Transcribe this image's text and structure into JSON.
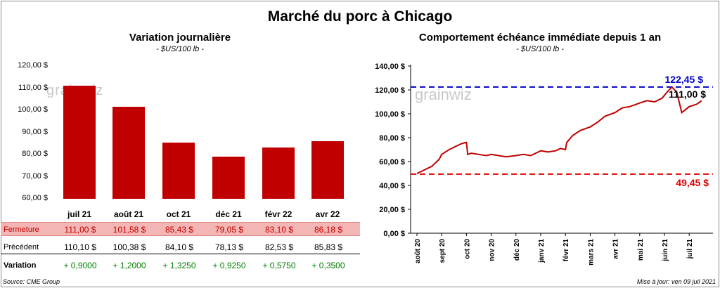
{
  "title": "Marché du porc à Chicago",
  "left_panel": {
    "title": "Variation journalière",
    "unit": "- $US/100 lb -",
    "watermark": "grainwiz",
    "table": {
      "rows": [
        {
          "label": "Fermeture",
          "cells": [
            "111,00  $",
            "101,58  $",
            "85,43  $",
            "79,05  $",
            "83,10  $",
            "86,18  $"
          ]
        },
        {
          "label": "Précédent",
          "cells": [
            "110,10  $",
            "100,38  $",
            "84,10  $",
            "78,13  $",
            "82,53  $",
            "85,83  $"
          ]
        },
        {
          "label": "Variation",
          "cells": [
            "+ 0,9000",
            "+ 1,2000",
            "+ 1,3250",
            "+ 0,9250",
            "+ 0,5750",
            "+ 0,3500"
          ]
        }
      ]
    }
  },
  "right_panel": {
    "title": "Comportement  échéance immédiate depuis 1 an",
    "unit": "- $US/100 lb -",
    "watermark": "grainwiz",
    "high_label": "122,45 $",
    "low_label": "49,45 $",
    "last_label": "111,00 $"
  },
  "colors": {
    "bar": "#c00000",
    "high_line": "#0000cc",
    "low_line": "#e00000",
    "positive": "#008000",
    "fermeture_bg": "#f4b6b4",
    "line": "#c00000"
  },
  "chart_data": [
    {
      "type": "bar",
      "title": "Variation journalière",
      "ylabel": "$US/100 lb",
      "categories": [
        "juil 21",
        "août 21",
        "oct 21",
        "déc 21",
        "févr 22",
        "avr 22"
      ],
      "values": [
        111.0,
        101.58,
        85.43,
        79.05,
        83.1,
        86.18
      ],
      "ylim": [
        60,
        120
      ],
      "yticks": [
        "60,00 $",
        "70,00 $",
        "80,00 $",
        "90,00 $",
        "100,00 $",
        "110,00 $",
        "120,00 $"
      ]
    },
    {
      "type": "line",
      "title": "Comportement  échéance immédiate depuis 1 an",
      "ylabel": "$US/100 lb",
      "ylim": [
        0,
        140
      ],
      "yticks": [
        "0,00 $",
        "20,00 $",
        "40,00 $",
        "60,00 $",
        "80,00 $",
        "100,00 $",
        "120,00 $",
        "140,00 $"
      ],
      "x_labels": [
        "août 20",
        "sept 20",
        "oct 20",
        "nov 20",
        "déc 20",
        "janv 21",
        "févr 21",
        "mars 21",
        "avr 21",
        "mai 21",
        "juin 21",
        "juil 21"
      ],
      "x": [
        0,
        0.3,
        0.6,
        0.9,
        1.0,
        1.3,
        1.6,
        1.8,
        2.0,
        2.05,
        2.2,
        2.5,
        2.8,
        3.0,
        3.3,
        3.6,
        4.0,
        4.3,
        4.6,
        5.0,
        5.3,
        5.6,
        5.8,
        6.0,
        6.05,
        6.3,
        6.6,
        7.0,
        7.3,
        7.6,
        8.0,
        8.3,
        8.6,
        9.0,
        9.3,
        9.6,
        9.9,
        10.1,
        10.3,
        10.5,
        10.7,
        11.0,
        11.3,
        11.5
      ],
      "series": [
        {
          "name": "Échéance immédiate",
          "values": [
            50,
            53,
            56,
            62,
            66,
            70,
            73,
            75,
            76,
            66,
            67,
            66,
            65,
            66,
            65,
            64,
            65,
            66,
            65,
            69,
            68,
            69,
            71,
            70,
            76,
            82,
            86,
            89,
            93,
            98,
            101,
            105,
            106,
            109,
            111,
            110,
            113,
            118,
            122.45,
            118,
            101,
            106,
            108,
            111
          ]
        }
      ],
      "reference_lines": [
        {
          "name": "Haut",
          "value": 122.45
        },
        {
          "name": "Bas",
          "value": 49.45
        }
      ]
    }
  ],
  "footer": {
    "source": "Source: CME Group",
    "updated": "Mise à jour: ven 09 juil 2021"
  }
}
